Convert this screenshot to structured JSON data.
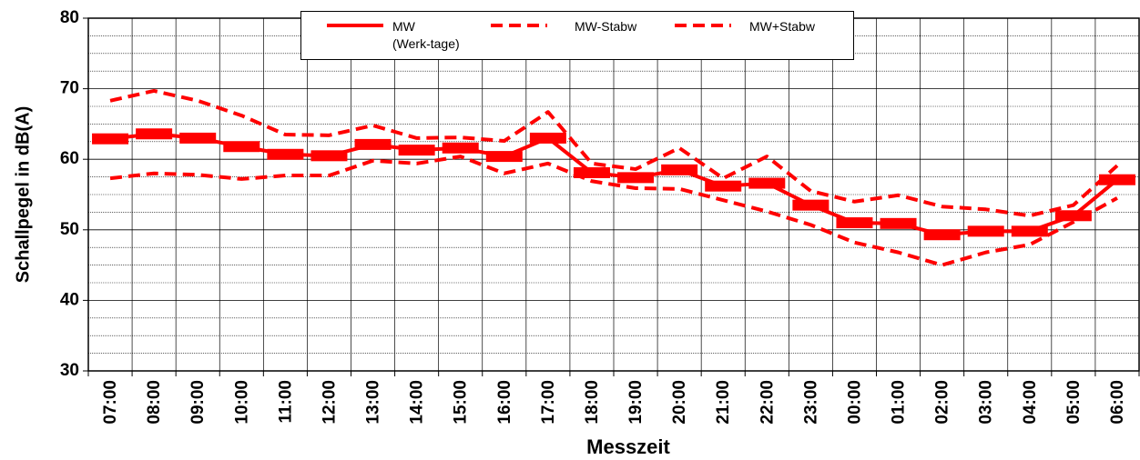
{
  "chart_data": {
    "type": "line",
    "y_label": "Schallpegel in dB(A)",
    "x_label": "Messzeit",
    "categories": [
      "07:00",
      "08:00",
      "09:00",
      "10:00",
      "11:00",
      "12:00",
      "13:00",
      "14:00",
      "15:00",
      "16:00",
      "17:00",
      "18:00",
      "19:00",
      "20:00",
      "21:00",
      "22:00",
      "23:00",
      "00:00",
      "01:00",
      "02:00",
      "03:00",
      "04:00",
      "05:00",
      "06:00"
    ],
    "series": [
      {
        "name": "MW\n(Werk-tage)",
        "color": "#ff0000",
        "style": "solid-marker",
        "values": [
          62.9,
          63.6,
          63.0,
          61.8,
          60.7,
          60.5,
          62.1,
          61.3,
          61.6,
          60.4,
          63.0,
          58.1,
          57.4,
          58.5,
          56.2,
          56.6,
          53.5,
          51.0,
          50.9,
          49.3,
          49.8,
          49.8,
          52.0,
          57.1
        ]
      },
      {
        "name": "MW-Stabw",
        "color": "#ff0000",
        "style": "dashed",
        "values": [
          57.3,
          58.0,
          57.8,
          57.2,
          57.7,
          57.7,
          59.8,
          59.4,
          60.4,
          58.0,
          59.4,
          56.9,
          55.9,
          55.8,
          54.2,
          52.6,
          50.7,
          48.2,
          46.8,
          45.0,
          46.8,
          47.9,
          51.1,
          54.5
        ]
      },
      {
        "name": "MW+Stabw",
        "color": "#ff0000",
        "style": "dashed",
        "values": [
          68.3,
          69.7,
          68.3,
          66.2,
          63.5,
          63.4,
          64.8,
          63.0,
          63.1,
          62.6,
          66.7,
          59.4,
          58.6,
          61.6,
          57.3,
          60.4,
          55.5,
          54.0,
          54.9,
          53.3,
          52.9,
          52.0,
          53.5,
          59.1
        ]
      }
    ],
    "ylim": [
      30,
      80
    ],
    "yticks": [
      30,
      40,
      50,
      60,
      70,
      80
    ],
    "yminor": [
      32.5,
      35,
      37.5,
      42.5,
      45,
      47.5,
      52.5,
      55,
      57.5,
      62.5,
      65,
      67.5,
      72.5,
      75,
      77.5
    ],
    "grid": true,
    "legend": "top"
  }
}
